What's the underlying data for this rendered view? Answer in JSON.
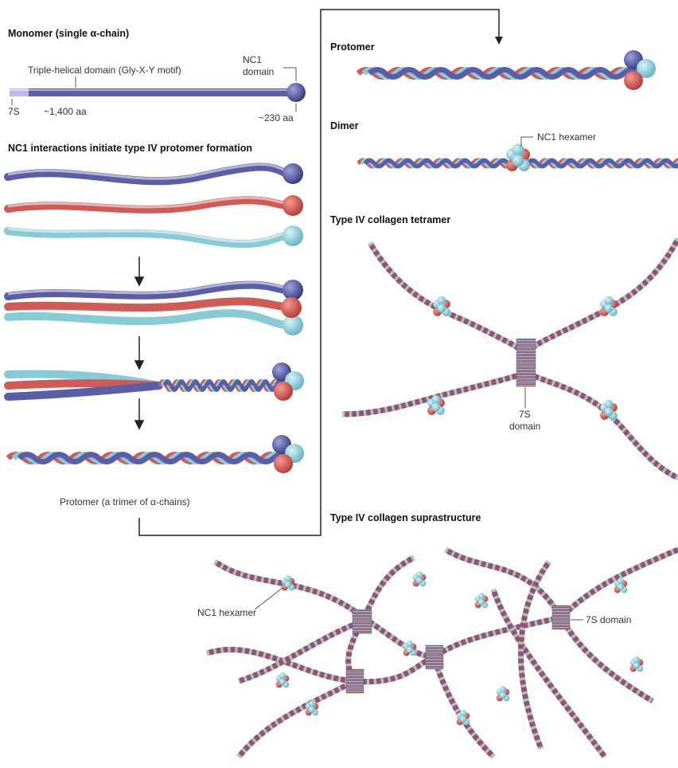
{
  "monomer": {
    "title": "Monomer (single α-chain)",
    "domain_label": "Triple-helical domain (Gly-X-Y motif)",
    "nc1_label": [
      "NC1",
      "domain"
    ],
    "left_label": "7S",
    "length_label": "~1,400 aa",
    "nc1_length": "~230 aa"
  },
  "assembly": {
    "title": "NC1 interactions initiate type IV protomer formation",
    "result_label": "Protomer (a trimer of α-chains)"
  },
  "protomer": {
    "title": "Protomer"
  },
  "dimer": {
    "title": "Dimer",
    "hexamer_label": "NC1 hexamer"
  },
  "tetramer": {
    "title": "Type IV collagen tetramer",
    "domain_label": [
      "7S",
      "domain"
    ]
  },
  "suprastructure": {
    "title": "Type IV collagen suprastructure",
    "hexamer_label": "NC1 hexamer",
    "domain_label": "7S domain"
  }
}
